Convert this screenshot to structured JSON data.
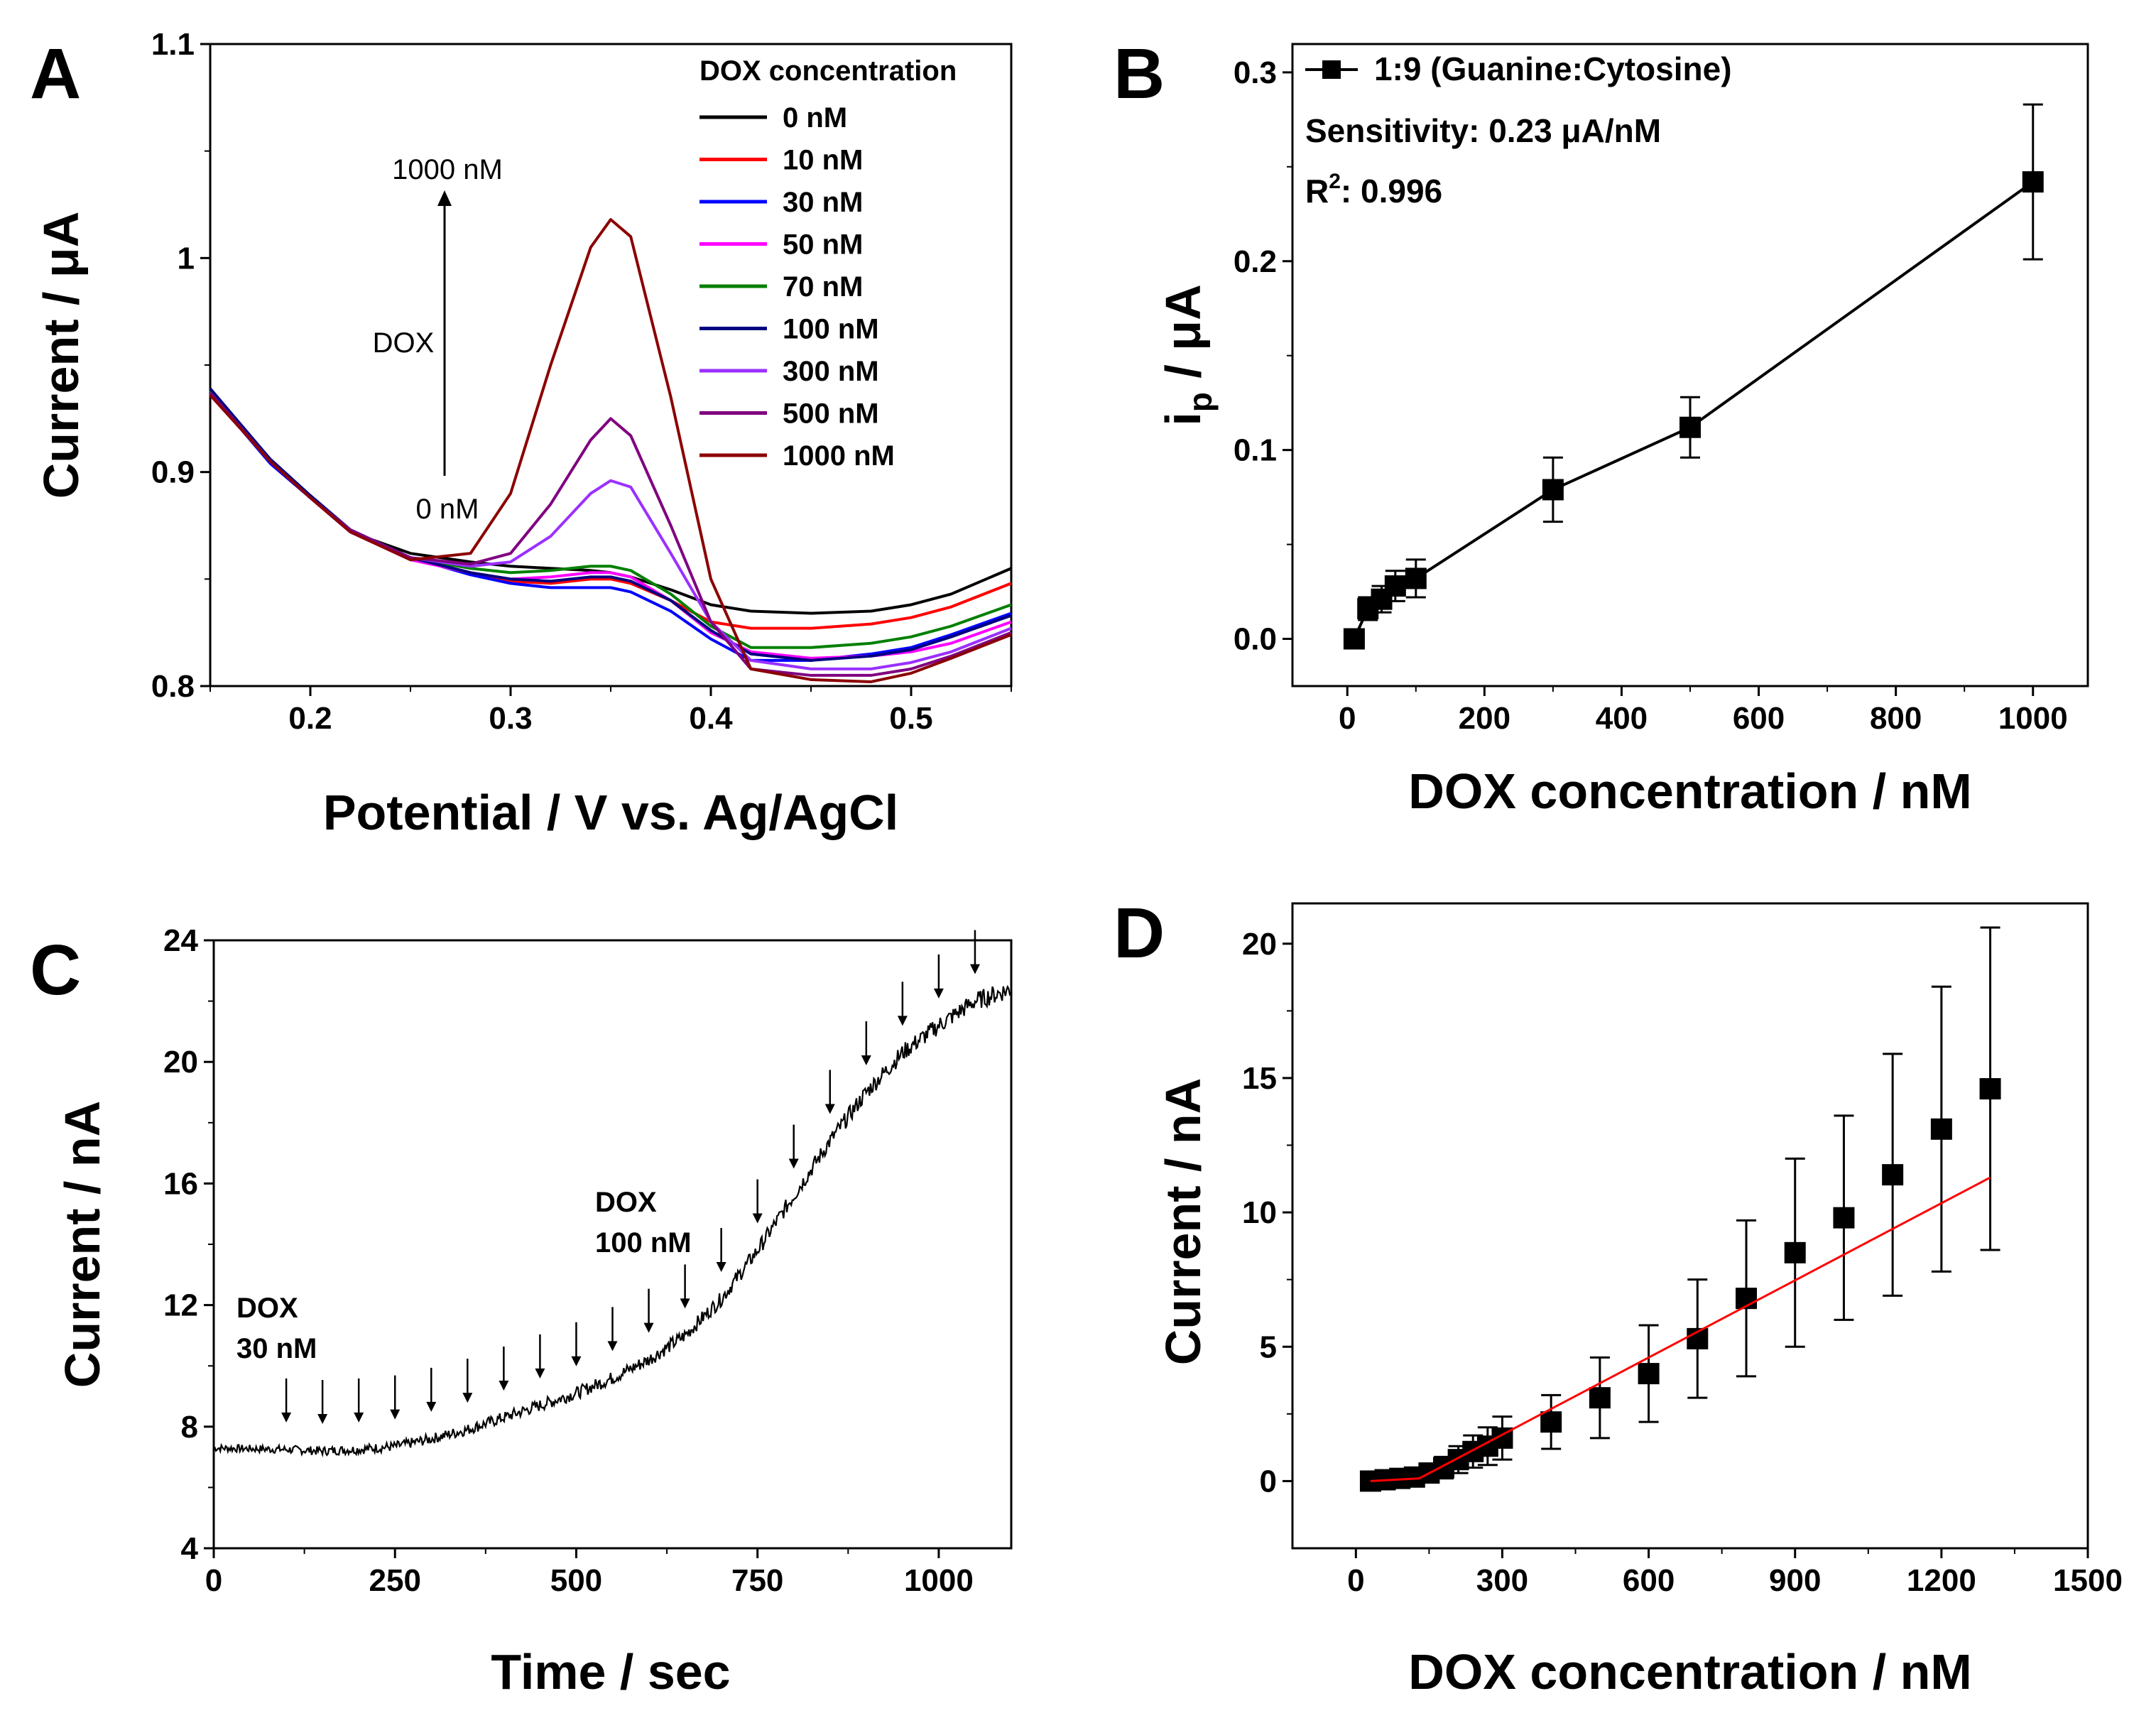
{
  "chart_data": [
    {
      "panel": "A",
      "type": "line",
      "xlabel": "Potential / V vs. Ag/AgCl",
      "ylabel": "Current / μA",
      "xlim": [
        0.15,
        0.55
      ],
      "ylim": [
        0.8,
        1.1
      ],
      "xticks": [
        0.2,
        0.3,
        0.4,
        0.5
      ],
      "yticks": [
        0.8,
        0.9,
        1.0,
        1.1
      ],
      "legend_title": "DOX concentration",
      "legend_position": "top-right",
      "annotations": {
        "top": "1000 nM",
        "middle": "DOX",
        "bottom": "0 nM"
      },
      "x": [
        0.15,
        0.18,
        0.2,
        0.22,
        0.25,
        0.28,
        0.3,
        0.32,
        0.34,
        0.35,
        0.36,
        0.38,
        0.4,
        0.42,
        0.45,
        0.48,
        0.5,
        0.52,
        0.55
      ],
      "series": [
        {
          "name": "0 nM",
          "color": "#000000",
          "values": [
            0.936,
            0.905,
            0.888,
            0.872,
            0.862,
            0.858,
            0.856,
            0.855,
            0.854,
            0.853,
            0.851,
            0.845,
            0.838,
            0.835,
            0.834,
            0.835,
            0.838,
            0.843,
            0.855
          ]
        },
        {
          "name": "10 nM",
          "color": "#ff0000",
          "values": [
            0.937,
            0.905,
            0.888,
            0.873,
            0.86,
            0.853,
            0.849,
            0.848,
            0.85,
            0.85,
            0.848,
            0.84,
            0.83,
            0.827,
            0.827,
            0.829,
            0.832,
            0.837,
            0.848
          ]
        },
        {
          "name": "30 nM",
          "color": "#0000ff",
          "values": [
            0.937,
            0.904,
            0.888,
            0.872,
            0.86,
            0.852,
            0.848,
            0.846,
            0.846,
            0.846,
            0.844,
            0.835,
            0.822,
            0.812,
            0.812,
            0.815,
            0.818,
            0.824,
            0.834
          ]
        },
        {
          "name": "50 nM",
          "color": "#ff00ff",
          "values": [
            0.936,
            0.905,
            0.888,
            0.872,
            0.859,
            0.853,
            0.85,
            0.851,
            0.853,
            0.853,
            0.851,
            0.84,
            0.825,
            0.816,
            0.813,
            0.814,
            0.816,
            0.82,
            0.83
          ]
        },
        {
          "name": "70 nM",
          "color": "#008000",
          "values": [
            0.938,
            0.906,
            0.889,
            0.873,
            0.86,
            0.855,
            0.853,
            0.854,
            0.856,
            0.856,
            0.854,
            0.843,
            0.828,
            0.818,
            0.818,
            0.82,
            0.823,
            0.828,
            0.838
          ]
        },
        {
          "name": "100 nM",
          "color": "#000080",
          "values": [
            0.939,
            0.906,
            0.889,
            0.873,
            0.86,
            0.853,
            0.85,
            0.849,
            0.851,
            0.851,
            0.849,
            0.84,
            0.826,
            0.815,
            0.812,
            0.814,
            0.817,
            0.823,
            0.833
          ]
        },
        {
          "name": "300 nM",
          "color": "#9b30ff",
          "values": [
            0.937,
            0.905,
            0.888,
            0.872,
            0.86,
            0.856,
            0.858,
            0.87,
            0.89,
            0.896,
            0.893,
            0.862,
            0.83,
            0.812,
            0.808,
            0.808,
            0.811,
            0.816,
            0.827
          ]
        },
        {
          "name": "500 nM",
          "color": "#800080",
          "values": [
            0.937,
            0.905,
            0.888,
            0.873,
            0.86,
            0.857,
            0.862,
            0.885,
            0.915,
            0.925,
            0.917,
            0.875,
            0.83,
            0.808,
            0.805,
            0.805,
            0.808,
            0.814,
            0.825
          ]
        },
        {
          "name": "1000 nM",
          "color": "#8b0000",
          "values": [
            0.936,
            0.905,
            0.888,
            0.872,
            0.859,
            0.862,
            0.89,
            0.95,
            1.005,
            1.018,
            1.01,
            0.935,
            0.85,
            0.808,
            0.803,
            0.802,
            0.806,
            0.813,
            0.824
          ]
        }
      ]
    },
    {
      "panel": "B",
      "type": "scatter",
      "xlabel": "DOX concentration / nM",
      "ylabel_main": "i",
      "ylabel_sub": "p",
      "ylabel_unit": " / μA",
      "xlim": [
        -80,
        1080
      ],
      "ylim": [
        -0.025,
        0.315
      ],
      "xticks": [
        0,
        200,
        400,
        600,
        800,
        1000
      ],
      "yticks": [
        0.0,
        0.1,
        0.2,
        0.3
      ],
      "yticklabels": [
        "0.0",
        "0.1",
        "0.2",
        "0.3"
      ],
      "series_name": "1:9 (Guanine:Cytosine)",
      "sensitivity": "Sensitivity: 0.23 μA/nM",
      "r2_prefix": "R",
      "r2_sup": "2",
      "r2_value": ": 0.996",
      "x": [
        10,
        30,
        50,
        70,
        100,
        300,
        500,
        1000
      ],
      "y": [
        0.0,
        0.016,
        0.021,
        0.028,
        0.032,
        0.079,
        0.112,
        0.242
      ],
      "yerr": [
        0.0,
        0.006,
        0.007,
        0.008,
        0.01,
        0.017,
        0.016,
        0.041
      ]
    },
    {
      "panel": "C",
      "type": "line",
      "xlabel": "Time / sec",
      "ylabel": "Current / nA",
      "xlim": [
        0,
        1100
      ],
      "ylim": [
        4,
        24
      ],
      "xticks": [
        0,
        250,
        500,
        750,
        1000
      ],
      "yticks": [
        4,
        8,
        12,
        16,
        20,
        24
      ],
      "trace_points": [
        [
          0,
          7.3
        ],
        [
          100,
          7.25
        ],
        [
          150,
          7.2
        ],
        [
          200,
          7.25
        ],
        [
          250,
          7.35
        ],
        [
          300,
          7.6
        ],
        [
          350,
          7.9
        ],
        [
          400,
          8.3
        ],
        [
          450,
          8.7
        ],
        [
          500,
          9.1
        ],
        [
          550,
          9.6
        ],
        [
          600,
          10.2
        ],
        [
          650,
          11.0
        ],
        [
          700,
          12.2
        ],
        [
          750,
          13.8
        ],
        [
          800,
          15.6
        ],
        [
          850,
          17.4
        ],
        [
          900,
          19.0
        ],
        [
          950,
          20.3
        ],
        [
          1000,
          21.2
        ],
        [
          1050,
          22.0
        ],
        [
          1100,
          22.4
        ]
      ],
      "addition_arrows_time": [
        100,
        150,
        200,
        250,
        300,
        350,
        400,
        450,
        500,
        550,
        600,
        650,
        700,
        750,
        800,
        850,
        900,
        950,
        1000,
        1050
      ],
      "annotation_1": [
        "DOX",
        "30 nM"
      ],
      "annotation_2": [
        "DOX",
        "100 nM"
      ]
    },
    {
      "panel": "D",
      "type": "scatter",
      "xlabel": "DOX concentration / nM",
      "ylabel": "Current / nA",
      "xlim": [
        -130,
        1500
      ],
      "ylim": [
        -2.5,
        21.5
      ],
      "xticks": [
        0,
        300,
        600,
        900,
        1200,
        1500
      ],
      "yticks": [
        0,
        5,
        10,
        15,
        20
      ],
      "x": [
        30,
        60,
        90,
        120,
        150,
        180,
        210,
        240,
        270,
        300,
        400,
        500,
        600,
        700,
        800,
        900,
        1000,
        1100,
        1200,
        1300
      ],
      "y": [
        0.0,
        0.05,
        0.1,
        0.15,
        0.3,
        0.5,
        0.8,
        1.1,
        1.3,
        1.6,
        2.2,
        3.1,
        4.0,
        5.3,
        6.8,
        8.5,
        9.8,
        11.4,
        13.1,
        14.6
      ],
      "yerr": [
        0.2,
        0.2,
        0.2,
        0.2,
        0.3,
        0.4,
        0.5,
        0.6,
        0.7,
        0.8,
        1.0,
        1.5,
        1.8,
        2.2,
        2.9,
        3.5,
        3.8,
        4.5,
        5.3,
        6.0
      ],
      "fit_line_color": "#ff0000",
      "fit_line": [
        [
          30,
          0.0
        ],
        [
          130,
          0.1
        ],
        [
          1300,
          11.3
        ]
      ]
    }
  ],
  "panel_labels": [
    "A",
    "B",
    "C",
    "D"
  ]
}
